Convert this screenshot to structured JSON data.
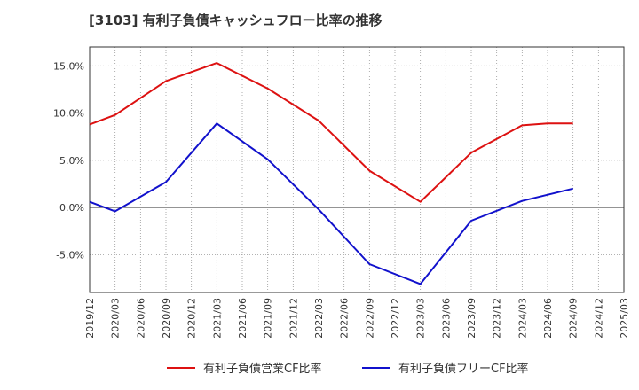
{
  "chart_data": {
    "type": "line",
    "title": "[3103]  有利子負債キャッシュフロー比率の推移",
    "xlabel": "",
    "ylabel": "",
    "ylim": [
      -9,
      17
    ],
    "yticks": [
      15,
      10,
      5,
      0,
      -5
    ],
    "ytick_labels": [
      "15.0%",
      "10.0%",
      "5.0%",
      "0.0%",
      "-5.0%"
    ],
    "x_tick_labels": [
      "2019/12",
      "2020/03",
      "2020/06",
      "2020/09",
      "2020/12",
      "2021/03",
      "2021/06",
      "2021/09",
      "2021/12",
      "2022/03",
      "2022/06",
      "2022/09",
      "2022/12",
      "2023/03",
      "2023/06",
      "2023/09",
      "2023/12",
      "2024/03",
      "2024/06",
      "2024/09",
      "2024/12",
      "2025/03"
    ],
    "grid": true,
    "legend_position": "bottom",
    "series": [
      {
        "name": "有利子負債営業CF比率",
        "color": "#dd1111",
        "values": [
          8.8,
          9.8,
          null,
          13.4,
          null,
          15.3,
          null,
          12.6,
          null,
          9.2,
          null,
          3.9,
          null,
          0.6,
          null,
          5.8,
          null,
          8.7,
          8.9,
          8.9,
          null,
          null
        ]
      },
      {
        "name": "有利子負債フリーCF比率",
        "color": "#1111cc",
        "values": [
          0.6,
          -0.4,
          null,
          2.7,
          null,
          8.9,
          null,
          5.1,
          null,
          -0.2,
          null,
          -6.0,
          null,
          -8.1,
          null,
          -1.4,
          null,
          0.7,
          null,
          2.0,
          null,
          null
        ]
      }
    ]
  }
}
